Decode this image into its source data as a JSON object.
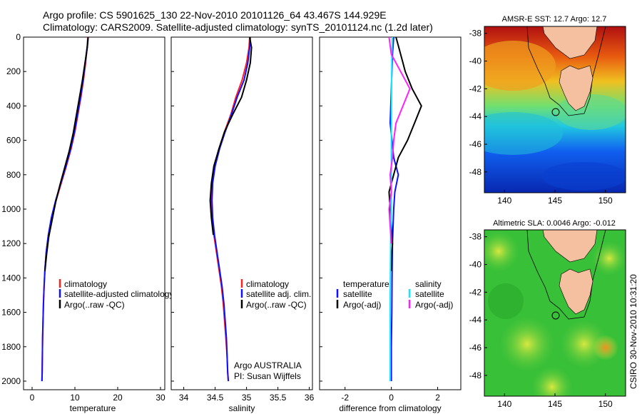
{
  "title_line1": "Argo profile: CS 5901625_130 22-Nov-2010 20101126_64 43.467S 144.929E",
  "title_line2": "Climatology: CARS2009. Satellite-adjusted climatology: synTS_20101124.nc (1.2d later)",
  "colors": {
    "climatology": "#ff2020",
    "satellite": "#1010ff",
    "argo": "#000000",
    "cyan": "#10e8ff",
    "magenta": "#ff20ff"
  },
  "chart_data": [
    {
      "type": "line",
      "id": "temperature",
      "xlabel": "temperature",
      "xlim": [
        -2,
        31
      ],
      "ylim": [
        0,
        2050
      ],
      "yreversed": true,
      "xticks": [
        "0",
        "10",
        "20",
        "30"
      ],
      "yticks": [
        "0",
        "200",
        "400",
        "600",
        "800",
        "1000",
        "1200",
        "1400",
        "1600",
        "1800",
        "2000"
      ],
      "legend": [
        "climatology",
        "satellite-adjusted climatology",
        "Argo(..raw -QC)"
      ],
      "series": [
        {
          "name": "climatology",
          "color_key": "climatology",
          "points": [
            [
              13.0,
              0
            ],
            [
              12.9,
              50
            ],
            [
              12.5,
              150
            ],
            [
              12.0,
              250
            ],
            [
              11.4,
              350
            ],
            [
              10.7,
              450
            ],
            [
              10.0,
              550
            ],
            [
              9.1,
              650
            ],
            [
              8.0,
              750
            ],
            [
              6.8,
              850
            ],
            [
              5.6,
              950
            ],
            [
              4.6,
              1050
            ],
            [
              3.8,
              1150
            ],
            [
              3.3,
              1250
            ],
            [
              3.0,
              1350
            ],
            [
              2.8,
              1450
            ],
            [
              2.65,
              1550
            ],
            [
              2.55,
              1650
            ],
            [
              2.45,
              1750
            ],
            [
              2.4,
              1850
            ],
            [
              2.35,
              1950
            ],
            [
              2.3,
              2000
            ]
          ]
        },
        {
          "name": "satellite-adjusted climatology",
          "color_key": "satellite",
          "points": [
            [
              13.1,
              0
            ],
            [
              12.9,
              50
            ],
            [
              12.4,
              150
            ],
            [
              11.9,
              250
            ],
            [
              11.3,
              350
            ],
            [
              10.6,
              450
            ],
            [
              9.9,
              550
            ],
            [
              9.0,
              650
            ],
            [
              7.9,
              750
            ],
            [
              6.7,
              850
            ],
            [
              5.5,
              950
            ],
            [
              4.5,
              1050
            ],
            [
              3.8,
              1150
            ],
            [
              3.3,
              1250
            ],
            [
              3.0,
              1350
            ],
            [
              2.8,
              1450
            ],
            [
              2.65,
              1550
            ],
            [
              2.55,
              1650
            ],
            [
              2.45,
              1750
            ],
            [
              2.4,
              1850
            ],
            [
              2.35,
              1950
            ],
            [
              2.3,
              2000
            ]
          ]
        },
        {
          "name": "Argo(..raw -QC)",
          "color_key": "argo",
          "points": [
            [
              13.1,
              0
            ],
            [
              12.9,
              60
            ],
            [
              12.3,
              160
            ],
            [
              11.7,
              260
            ],
            [
              11.0,
              360
            ],
            [
              10.3,
              460
            ],
            [
              9.6,
              560
            ],
            [
              8.7,
              660
            ],
            [
              7.6,
              760
            ],
            [
              6.5,
              860
            ],
            [
              5.5,
              960
            ],
            [
              4.7,
              1060
            ],
            [
              3.9,
              1160
            ],
            [
              3.4,
              1260
            ],
            [
              3.0,
              1360
            ]
          ]
        }
      ]
    },
    {
      "type": "line",
      "id": "salinity",
      "xlabel": "salinity",
      "xlim": [
        33.8,
        36.05
      ],
      "ylim": [
        0,
        2050
      ],
      "yreversed": true,
      "xticks": [
        "34",
        "34.5",
        "35",
        "35.5",
        "36"
      ],
      "legend": [
        "climatology",
        "satellite adj. clim.",
        "Argo(..raw -QC)"
      ],
      "annotation": [
        "Argo AUSTRALIA",
        "PI: Susan Wijffels"
      ],
      "series": [
        {
          "name": "climatology",
          "color_key": "climatology",
          "points": [
            [
              35.05,
              0
            ],
            [
              35.04,
              60
            ],
            [
              35.0,
              150
            ],
            [
              34.93,
              250
            ],
            [
              34.83,
              350
            ],
            [
              34.75,
              450
            ],
            [
              34.65,
              550
            ],
            [
              34.56,
              650
            ],
            [
              34.49,
              750
            ],
            [
              34.45,
              850
            ],
            [
              34.44,
              950
            ],
            [
              34.45,
              1050
            ],
            [
              34.48,
              1150
            ],
            [
              34.52,
              1250
            ],
            [
              34.56,
              1350
            ],
            [
              34.6,
              1450
            ],
            [
              34.63,
              1550
            ],
            [
              34.65,
              1650
            ],
            [
              34.67,
              1750
            ],
            [
              34.69,
              1850
            ],
            [
              34.7,
              1950
            ],
            [
              34.71,
              2000
            ]
          ]
        },
        {
          "name": "satellite adj. clim.",
          "color_key": "satellite",
          "points": [
            [
              35.06,
              0
            ],
            [
              35.05,
              60
            ],
            [
              35.02,
              150
            ],
            [
              34.96,
              250
            ],
            [
              34.85,
              350
            ],
            [
              34.76,
              450
            ],
            [
              34.66,
              550
            ],
            [
              34.57,
              650
            ],
            [
              34.5,
              750
            ],
            [
              34.46,
              850
            ],
            [
              34.45,
              950
            ],
            [
              34.46,
              1050
            ],
            [
              34.49,
              1150
            ],
            [
              34.53,
              1250
            ],
            [
              34.57,
              1350
            ],
            [
              34.61,
              1450
            ],
            [
              34.64,
              1550
            ],
            [
              34.66,
              1650
            ],
            [
              34.68,
              1750
            ],
            [
              34.69,
              1850
            ],
            [
              34.7,
              1950
            ],
            [
              34.71,
              2000
            ]
          ]
        },
        {
          "name": "Argo(..raw -QC)",
          "color_key": "argo",
          "points": [
            [
              35.05,
              0
            ],
            [
              35.08,
              60
            ],
            [
              35.06,
              150
            ],
            [
              35.0,
              250
            ],
            [
              34.92,
              350
            ],
            [
              34.78,
              450
            ],
            [
              34.65,
              550
            ],
            [
              34.56,
              650
            ],
            [
              34.48,
              750
            ],
            [
              34.44,
              850
            ],
            [
              34.42,
              950
            ],
            [
              34.44,
              1050
            ],
            [
              34.47,
              1150
            ]
          ]
        }
      ]
    },
    {
      "type": "line",
      "id": "difference",
      "xlabel": "difference from climatology",
      "xlim": [
        -3.1,
        3.0
      ],
      "ylim": [
        0,
        2050
      ],
      "yreversed": true,
      "xticks": [
        "-2",
        "0",
        "2"
      ],
      "legend_left": [
        "temperature",
        "satellite",
        "Argo(-adj)"
      ],
      "legend_right": [
        "salinity",
        "satellite",
        "Argo(-adj)"
      ],
      "series": [
        {
          "name": "temperature satellite",
          "color_key": "satellite",
          "points": [
            [
              0.1,
              0
            ],
            [
              0.05,
              100
            ],
            [
              0.0,
              300
            ],
            [
              -0.05,
              500
            ],
            [
              0.1,
              700
            ],
            [
              0.3,
              800
            ],
            [
              0.15,
              900
            ],
            [
              0.1,
              1000
            ],
            [
              0.05,
              1200
            ],
            [
              0.03,
              1400
            ],
            [
              0.02,
              1600
            ],
            [
              0.0,
              1800
            ],
            [
              0.0,
              2000
            ]
          ]
        },
        {
          "name": "temperature Argo(-adj)",
          "color_key": "argo",
          "points": [
            [
              0.2,
              0
            ],
            [
              0.3,
              50
            ],
            [
              0.5,
              150
            ],
            [
              0.6,
              200
            ],
            [
              0.9,
              300
            ],
            [
              1.1,
              350
            ],
            [
              1.3,
              400
            ],
            [
              1.0,
              500
            ],
            [
              0.7,
              600
            ],
            [
              0.3,
              700
            ],
            [
              0.1,
              800
            ],
            [
              -0.1,
              900
            ],
            [
              -0.05,
              1000
            ],
            [
              0.0,
              1100
            ],
            [
              0.05,
              1200
            ],
            [
              0.0,
              1300
            ],
            [
              0.0,
              1360
            ]
          ]
        },
        {
          "name": "salinity satellite",
          "color_key": "cyan",
          "points": [
            [
              0.05,
              0
            ],
            [
              0.02,
              100
            ],
            [
              0.01,
              300
            ],
            [
              0.0,
              600
            ],
            [
              0.0,
              900
            ],
            [
              -0.03,
              1200
            ],
            [
              -0.05,
              1500
            ],
            [
              -0.05,
              1800
            ],
            [
              -0.05,
              2000
            ]
          ]
        },
        {
          "name": "salinity Argo(-adj)",
          "color_key": "magenta",
          "points": [
            [
              -0.1,
              0
            ],
            [
              0.0,
              100
            ],
            [
              0.4,
              200
            ],
            [
              0.8,
              300
            ],
            [
              0.5,
              400
            ],
            [
              0.2,
              500
            ],
            [
              0.1,
              600
            ],
            [
              0.05,
              700
            ],
            [
              -0.05,
              800
            ],
            [
              0.0,
              900
            ],
            [
              -0.1,
              1000
            ],
            [
              -0.05,
              1100
            ],
            [
              0.0,
              1200
            ]
          ]
        }
      ]
    }
  ],
  "maps": [
    {
      "id": "sst",
      "title": "AMSR-E SST: 12.7  Argo: 12.7",
      "xticks": [
        "140",
        "145",
        "150"
      ],
      "yticks": [
        "-38",
        "-40",
        "-42",
        "-44",
        "-46",
        "-48"
      ]
    },
    {
      "id": "sla",
      "title": "Altimetric SLA: 0.0046  Argo: -0.012",
      "xticks": [
        "140",
        "145",
        "150"
      ],
      "yticks": [
        "-38",
        "-40",
        "-42",
        "-44",
        "-46",
        "-48"
      ]
    }
  ],
  "side_label": "CSIRO  30-Nov-2010 10:31:20"
}
